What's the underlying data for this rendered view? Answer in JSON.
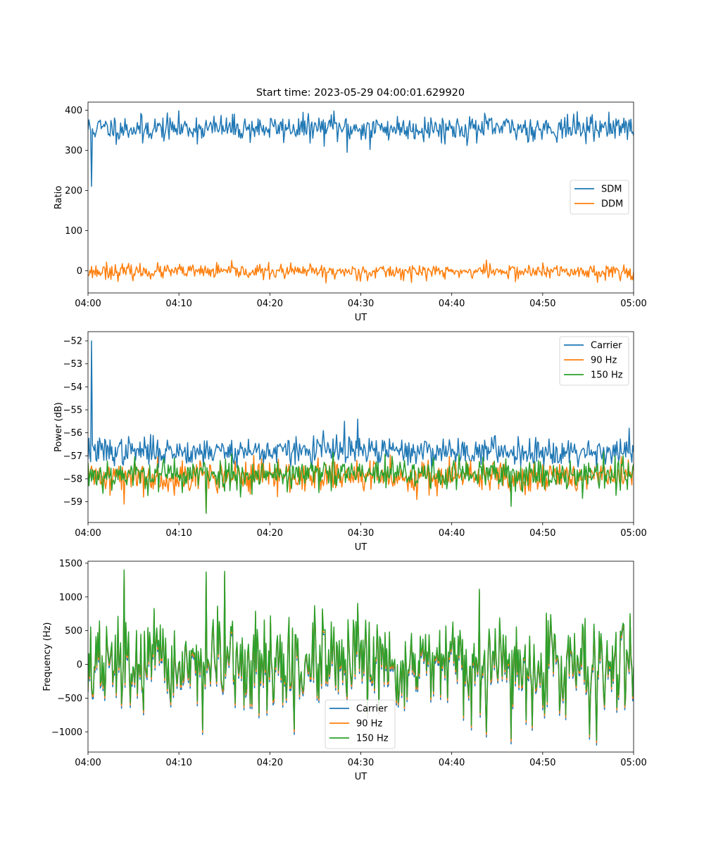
{
  "figure_title": "Start time: 2023-05-29 04:00:01.629920",
  "colors": {
    "blue": "#1f77b4",
    "orange": "#ff7f0e",
    "green": "#2ca02c"
  },
  "chart_data": [
    {
      "type": "line",
      "title": "Start time: 2023-05-29 04:00:01.629920",
      "xlabel": "UT",
      "ylabel": "Ratio",
      "x_range": [
        "04:00",
        "05:00"
      ],
      "xticks": [
        "04:00",
        "04:10",
        "04:20",
        "04:30",
        "04:40",
        "04:50",
        "05:00"
      ],
      "ylim": [
        -55,
        420
      ],
      "yticks": [
        0,
        100,
        200,
        300,
        400
      ],
      "legend_position": "center-right",
      "series": [
        {
          "name": "SDM",
          "color": "#1f77b4",
          "mean": 355,
          "noise": 16,
          "seed": 11,
          "spikes": [
            {
              "t": "04:00:24",
              "value": 210
            },
            {
              "t": "04:27:00",
              "value": 398
            },
            {
              "t": "04:28:30",
              "value": 295
            },
            {
              "t": "04:31:00",
              "value": 302
            },
            {
              "t": "04:57:20",
              "value": 395
            },
            {
              "t": "04:06:00",
              "value": 318
            }
          ]
        },
        {
          "name": "DDM",
          "color": "#ff7f0e",
          "mean": -2,
          "noise": 9,
          "seed": 23,
          "spikes": [
            {
              "t": "04:02:00",
              "value": 22
            },
            {
              "t": "04:26:10",
              "value": -30
            },
            {
              "t": "04:43:50",
              "value": 27
            }
          ]
        }
      ]
    },
    {
      "type": "line",
      "title": "",
      "xlabel": "UT",
      "ylabel": "Power (dB)",
      "x_range": [
        "04:00",
        "05:00"
      ],
      "xticks": [
        "04:00",
        "04:10",
        "04:20",
        "04:30",
        "04:40",
        "04:50",
        "05:00"
      ],
      "ylim": [
        -59.9,
        -51.6
      ],
      "yticks": [
        -59,
        -58,
        -57,
        -56,
        -55,
        -54,
        -53,
        -52
      ],
      "legend_position": "top-right",
      "series": [
        {
          "name": "Carrier",
          "color": "#1f77b4",
          "mean": -56.8,
          "noise": 0.3,
          "seed": 37,
          "spikes": [
            {
              "t": "04:00:24",
              "value": -52.0
            },
            {
              "t": "04:28:10",
              "value": -55.5
            },
            {
              "t": "04:29:40",
              "value": -55.4
            },
            {
              "t": "04:25:50",
              "value": -55.9
            },
            {
              "t": "04:59:30",
              "value": -55.8
            }
          ]
        },
        {
          "name": "90 Hz",
          "color": "#ff7f0e",
          "mean": -57.9,
          "noise": 0.35,
          "seed": 41,
          "spikes": [
            {
              "t": "04:04:00",
              "value": -59.1
            },
            {
              "t": "04:13:00",
              "value": -59.5
            }
          ]
        },
        {
          "name": "150 Hz",
          "color": "#2ca02c",
          "mean": -57.8,
          "noise": 0.35,
          "seed": 53,
          "spikes": [
            {
              "t": "04:13:00",
              "value": -59.5
            },
            {
              "t": "04:46:30",
              "value": -59.2
            },
            {
              "t": "04:58:00",
              "value": -57.0
            }
          ]
        }
      ]
    },
    {
      "type": "line",
      "title": "",
      "xlabel": "UT",
      "ylabel": "Frequency (Hz)",
      "x_range": [
        "04:00",
        "05:00"
      ],
      "xticks": [
        "04:00",
        "04:10",
        "04:20",
        "04:30",
        "04:40",
        "04:50",
        "05:00"
      ],
      "ylim": [
        -1300,
        1530
      ],
      "yticks": [
        -1000,
        -500,
        0,
        500,
        1000,
        1500
      ],
      "legend_position": "bottom-center",
      "series": [
        {
          "name": "Carrier",
          "color": "#1f77b4",
          "mean": -10,
          "noise": 330,
          "seed": 67,
          "offset": -70,
          "spikes": [
            {
              "t": "04:04:00",
              "value": 1310
            },
            {
              "t": "04:13:00",
              "value": 1300
            },
            {
              "t": "04:15:00",
              "value": 1300
            },
            {
              "t": "04:46:30",
              "value": -1180
            },
            {
              "t": "04:43:50",
              "value": -1080
            },
            {
              "t": "04:22:40",
              "value": -1040
            }
          ]
        },
        {
          "name": "90 Hz",
          "color": "#ff7f0e",
          "mean": -10,
          "noise": 330,
          "seed": 67,
          "offset": -35,
          "spikes": [
            {
              "t": "04:04:00",
              "value": 1360
            },
            {
              "t": "04:13:00",
              "value": 1340
            },
            {
              "t": "04:15:00",
              "value": 1340
            },
            {
              "t": "04:46:30",
              "value": -1140
            },
            {
              "t": "04:43:50",
              "value": -1040
            },
            {
              "t": "04:22:40",
              "value": -1000
            }
          ]
        },
        {
          "name": "150 Hz",
          "color": "#2ca02c",
          "mean": -10,
          "noise": 330,
          "seed": 67,
          "offset": 0,
          "spikes": [
            {
              "t": "04:04:00",
              "value": 1400
            },
            {
              "t": "04:13:00",
              "value": 1370
            },
            {
              "t": "04:15:00",
              "value": 1380
            },
            {
              "t": "04:46:30",
              "value": -1100
            },
            {
              "t": "04:43:50",
              "value": -1000
            },
            {
              "t": "04:22:40",
              "value": -960
            }
          ]
        }
      ]
    }
  ]
}
